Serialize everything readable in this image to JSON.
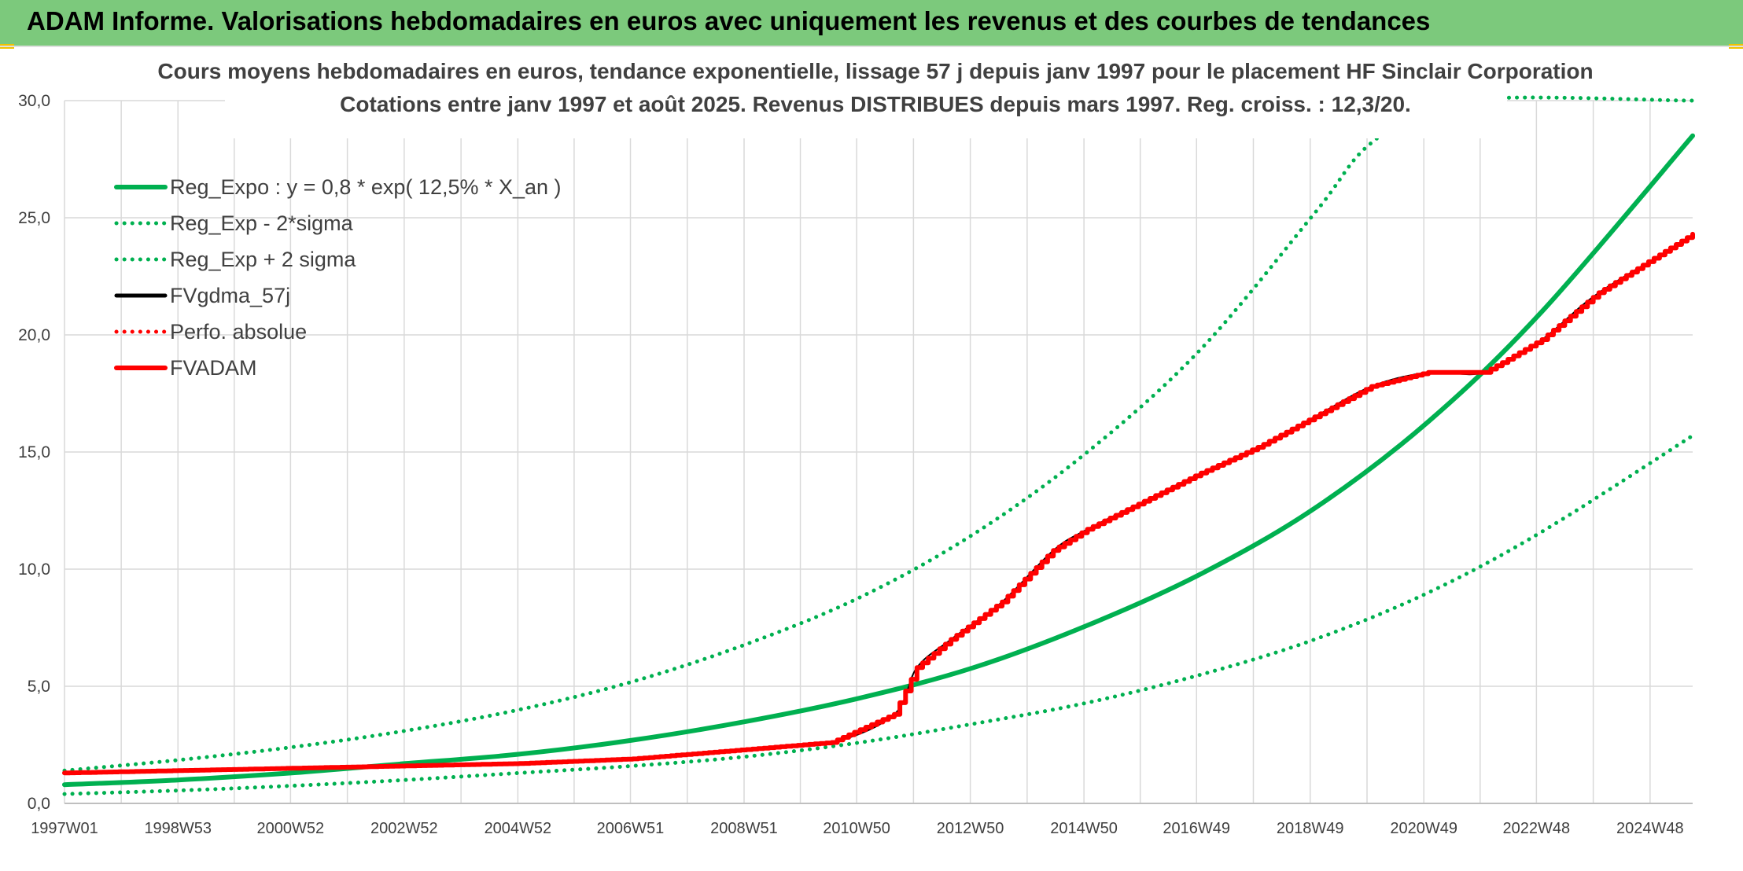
{
  "banner": {
    "title": "ADAM Informe. Valorisations hebdomadaires en euros avec uniquement les revenus et des courbes de tendances"
  },
  "colors": {
    "banner_bg": "#7cc97c",
    "green": "#00b050",
    "red": "#ff0000",
    "black": "#000000",
    "grid": "#d9d9d9",
    "corner_accent": "#f2c200"
  },
  "chart_data": {
    "type": "line",
    "title_lines": [
      "Cours moyens hebdomadaires en euros, tendance exponentielle, lissage 57 j depuis janv 1997 pour le placement HF Sinclair Corporation",
      "Cotations entre janv 1997 et août 2025. Revenus DISTRIBUES depuis mars 1997. Reg. croiss. : 12,3/20."
    ],
    "xlabel": "",
    "ylabel": "",
    "x_range": [
      "1997W01",
      "2025W35"
    ],
    "x_ticks": [
      "1997W01",
      "1998W53",
      "2000W52",
      "2002W52",
      "2004W52",
      "2006W51",
      "2008W51",
      "2010W50",
      "2012W50",
      "2014W50",
      "2016W49",
      "2018W49",
      "2020W49",
      "2022W48",
      "2024W48"
    ],
    "y_ticks": [
      "0,0",
      "5,0",
      "10,0",
      "15,0",
      "20,0",
      "25,0",
      "30,0"
    ],
    "ylim": [
      0,
      30
    ],
    "grid": true,
    "legend_position": "top-left",
    "series": [
      {
        "name": "Reg_Expo : y = 0,8 * exp( 12,5% *  X_an )",
        "style": "solid-thick",
        "color": "#00b050",
        "x": [
          1997,
          1999,
          2001,
          2003,
          2005,
          2007,
          2009,
          2011,
          2013,
          2015,
          2017,
          2019,
          2021,
          2023,
          2025.65
        ],
        "y": [
          0.8,
          1.0,
          1.3,
          1.7,
          2.1,
          2.7,
          3.5,
          4.5,
          5.8,
          7.6,
          9.8,
          12.6,
          16.3,
          21.0,
          28.5
        ]
      },
      {
        "name": "Reg_Exp - 2*sigma",
        "style": "dotted",
        "color": "#00b050",
        "x": [
          1997,
          1999,
          2001,
          2003,
          2005,
          2007,
          2009,
          2011,
          2013,
          2015,
          2017,
          2019,
          2021,
          2023,
          2025.65
        ],
        "y": [
          0.4,
          0.55,
          0.75,
          1.0,
          1.3,
          1.6,
          2.0,
          2.6,
          3.4,
          4.3,
          5.5,
          7.0,
          9.0,
          11.6,
          15.7
        ]
      },
      {
        "name": "Reg_Exp + 2 sigma",
        "style": "dotted",
        "color": "#00b050",
        "x": [
          1997,
          1999,
          2001,
          2003,
          2005,
          2007,
          2009,
          2011,
          2013,
          2015,
          2017,
          2019,
          2020.0,
          2021.5,
          2025.65
        ],
        "y": [
          1.4,
          1.85,
          2.4,
          3.1,
          4.0,
          5.2,
          6.8,
          8.8,
          11.5,
          15.0,
          19.4,
          25.2,
          28.2,
          30.0,
          30.0
        ]
      },
      {
        "name": "FVgdma_57j",
        "style": "solid",
        "color": "#000000",
        "x": [
          1997,
          1999,
          2001,
          2003,
          2005,
          2007,
          2009,
          2010.5,
          2011.6,
          2012.0,
          2012.6,
          2013.5,
          2014.4,
          2015,
          2016,
          2017,
          2018,
          2019,
          2020,
          2021,
          2022,
          2023,
          2024,
          2025.65
        ],
        "y": [
          1.3,
          1.4,
          1.5,
          1.6,
          1.7,
          1.9,
          2.3,
          2.6,
          3.8,
          5.8,
          7.0,
          8.6,
          10.8,
          11.7,
          12.9,
          14.1,
          15.2,
          16.5,
          17.8,
          18.4,
          18.4,
          19.8,
          21.8,
          24.2
        ]
      },
      {
        "name": "Perfo. absolue",
        "style": "dotted",
        "color": "#ff0000",
        "x": [],
        "y": []
      },
      {
        "name": "FVADAM",
        "style": "solid-thick-stepped",
        "color": "#ff0000",
        "x": [
          1997,
          1999,
          2001,
          2003,
          2005,
          2007,
          2009,
          2010.5,
          2011.6,
          2012.0,
          2012.6,
          2013.5,
          2014.4,
          2015,
          2016,
          2017,
          2018,
          2019,
          2020,
          2021,
          2022,
          2023,
          2024,
          2025.65
        ],
        "y": [
          1.3,
          1.4,
          1.5,
          1.6,
          1.7,
          1.9,
          2.3,
          2.6,
          3.8,
          5.8,
          7.0,
          8.6,
          10.8,
          11.7,
          12.9,
          14.1,
          15.2,
          16.5,
          17.8,
          18.4,
          18.4,
          19.8,
          21.8,
          24.3
        ]
      }
    ]
  }
}
